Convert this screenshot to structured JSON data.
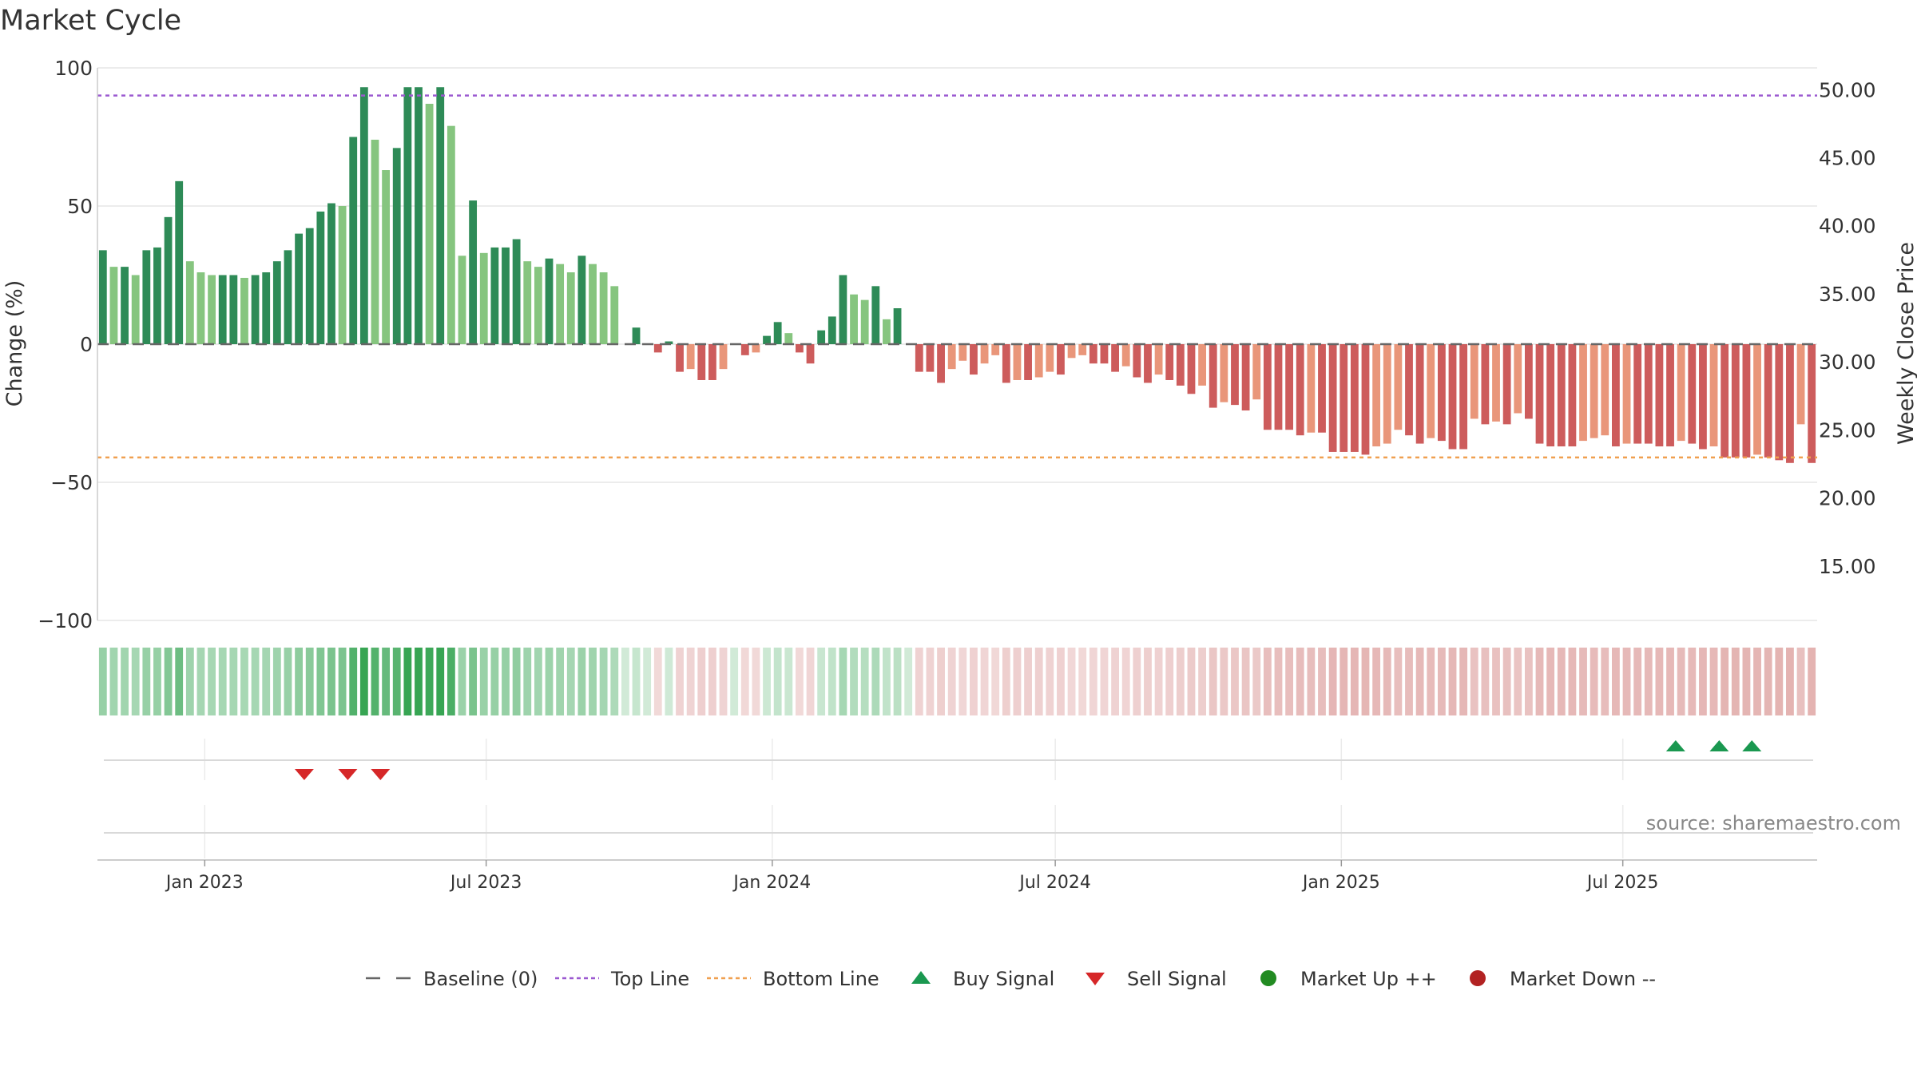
{
  "chart_data": {
    "type": "bar",
    "title": "Market Cycle",
    "ylabel": "Change (%)",
    "y2label": "Weekly Close Price",
    "ylim": [
      -100,
      100
    ],
    "y2lim": [
      11,
      51.6
    ],
    "yticks": [
      "100",
      "50",
      "0",
      "−50",
      "−100"
    ],
    "y2ticks": [
      "50.00",
      "45.00",
      "40.00",
      "35.00",
      "30.00",
      "25.00",
      "20.00",
      "15.00"
    ],
    "xticks": [
      "Jan 2023",
      "Jul 2023",
      "Jan 2024",
      "Jul 2024",
      "Jan 2025",
      "Jul 2025"
    ],
    "xtick_dates": [
      "2023-01-01",
      "2023-07-01",
      "2024-01-01",
      "2024-07-01",
      "2025-01-01",
      "2025-07-01"
    ],
    "start_date": "2022-10-24",
    "interval_days": 7,
    "top_line": 90,
    "bottom_line": -41,
    "values": [
      34,
      28,
      28,
      25,
      34,
      35,
      46,
      59,
      30,
      26,
      25,
      25,
      25,
      24,
      25,
      26,
      30,
      34,
      40,
      42,
      48,
      51,
      50,
      75,
      93,
      74,
      63,
      71,
      93,
      93,
      87,
      93,
      79,
      32,
      52,
      33,
      35,
      35,
      38,
      30,
      28,
      31,
      29,
      26,
      32,
      29,
      26,
      21,
      0,
      6,
      0,
      -3,
      1,
      -10,
      -9,
      -13,
      -13,
      -9,
      0,
      -4,
      -3,
      3,
      8,
      4,
      -3,
      -7,
      5,
      10,
      25,
      18,
      16,
      21,
      9,
      13,
      0,
      -10,
      -10,
      -14,
      -9,
      -6,
      -11,
      -7,
      -4,
      -14,
      -13,
      -13,
      -12,
      -10,
      -11,
      -5,
      -4,
      -7,
      -7,
      -10,
      -8,
      -12,
      -14,
      -11,
      -13,
      -15,
      -18,
      -15,
      -23,
      -21,
      -22,
      -24,
      -20,
      -31,
      -31,
      -31,
      -33,
      -32,
      -32,
      -39,
      -39,
      -39,
      -40,
      -37,
      -36,
      -31,
      -33,
      -36,
      -34,
      -35,
      -38,
      -38,
      -27,
      -29,
      -28,
      -29,
      -25,
      -27,
      -36,
      -37,
      -37,
      -37,
      -35,
      -34,
      -33,
      -37,
      -36,
      -36,
      -36,
      -37,
      -37,
      -35,
      -36,
      -38,
      -37,
      -41,
      -41,
      -41,
      -40,
      -41,
      -42,
      -43,
      -29,
      -43
    ],
    "sell_signals": [
      "2023-03-06",
      "2023-04-03",
      "2023-04-24"
    ],
    "buy_signals": [
      "2025-08-04",
      "2025-09-01",
      "2025-09-22"
    ],
    "legend": {
      "baseline": "Baseline (0)",
      "top": "Top Line",
      "bottom": "Bottom Line",
      "buy": "Buy Signal",
      "sell": "Sell Signal",
      "up": "Market Up ++",
      "down": "Market Down --"
    },
    "source": "source: sharemaestro.com",
    "colors": {
      "up_dark": "#2e8b57",
      "up_light": "#86c57f",
      "down_dark": "#cd5c5c",
      "down_light": "#e9967a",
      "top_line": "#9b59d0",
      "bottom_line": "#f0a050",
      "buy": "#1a9850",
      "sell": "#d62728",
      "market_up": "#228b22",
      "market_down": "#b22222"
    }
  }
}
